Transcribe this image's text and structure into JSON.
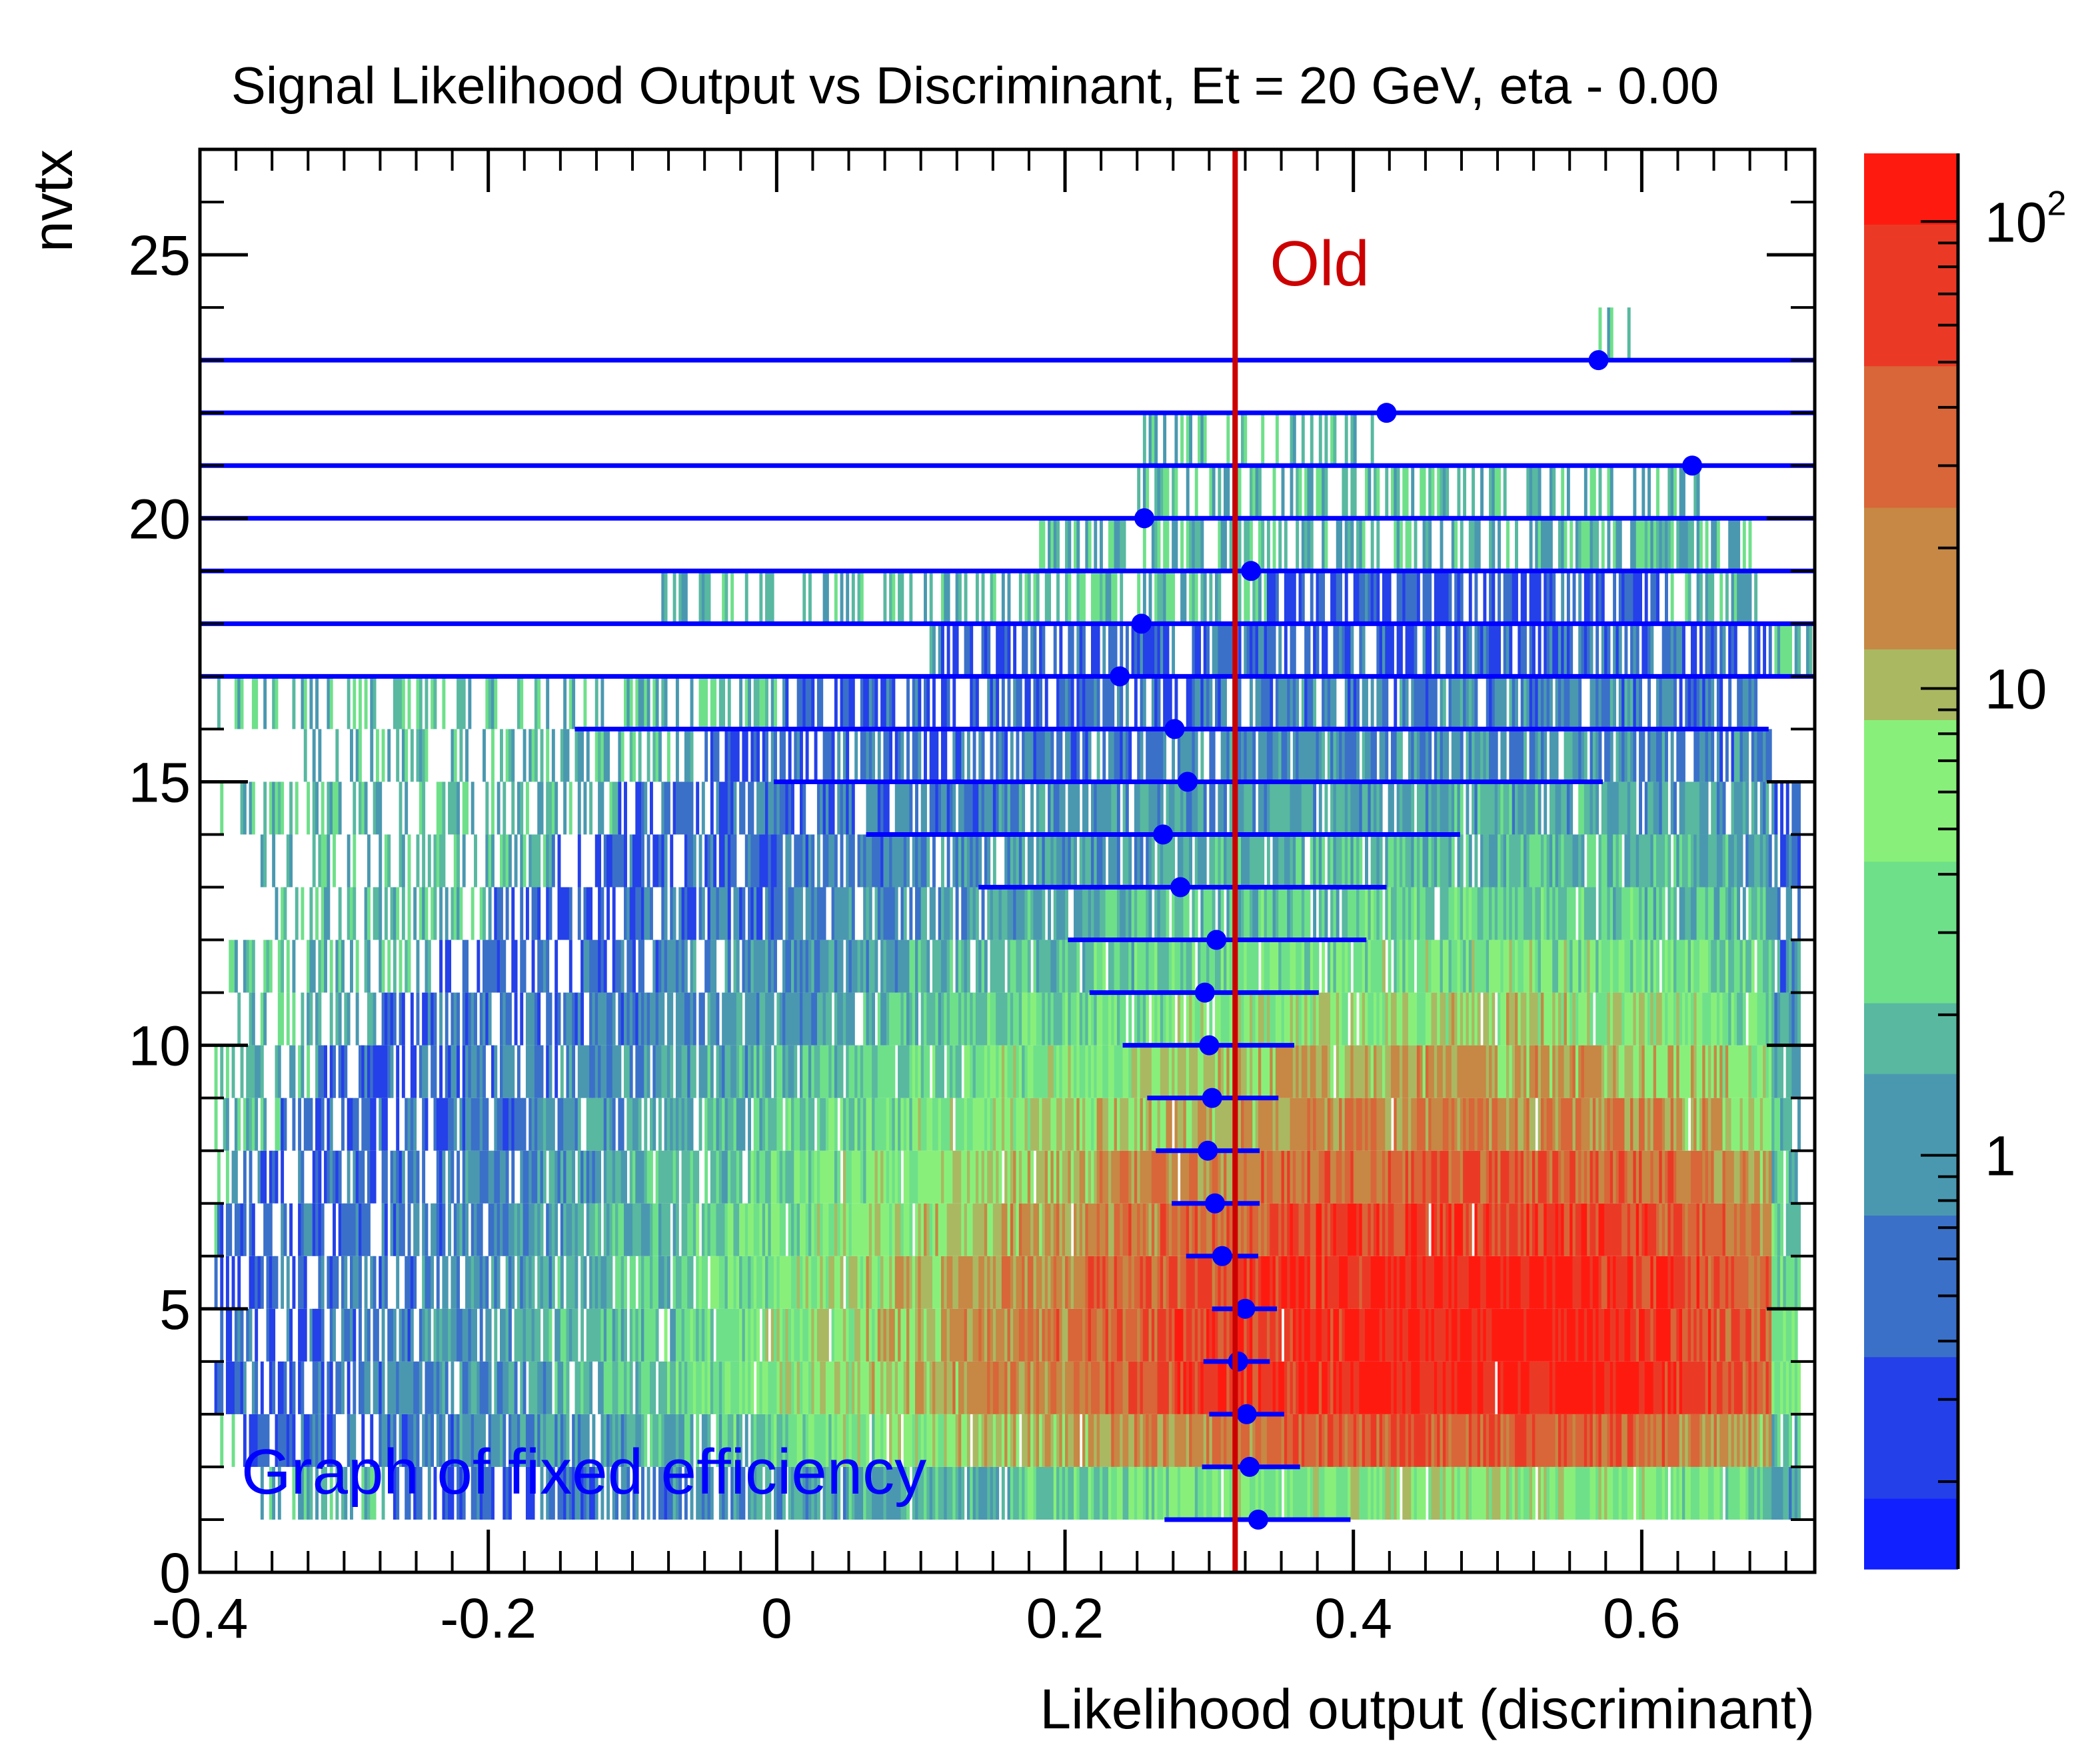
{
  "chart_data": {
    "type": "heatmap",
    "title": "Signal Likelihood Output vs Discriminant, Et = 20 GeV, eta - 0.00",
    "xlabel": "Likelihood output (discriminant)",
    "ylabel": "nvtx",
    "xlim": [
      -0.4,
      0.72
    ],
    "ylim": [
      0,
      27
    ],
    "x_ticks": [
      -0.4,
      -0.2,
      0,
      0.2,
      0.4,
      0.6
    ],
    "x_tick_labels": [
      "-0.4",
      "-0.2",
      "0",
      "0.2",
      "0.4",
      "0.6"
    ],
    "y_ticks": [
      0,
      5,
      10,
      15,
      20,
      25
    ],
    "y_tick_labels": [
      "0",
      "5",
      "10",
      "15",
      "20",
      "25"
    ],
    "z_scale": "log",
    "z_range": [
      0.13,
      140
    ],
    "z_tick_labels": [
      "1",
      "10",
      "10^2"
    ],
    "z_tick_values": [
      1,
      10,
      100
    ],
    "colors": {
      "graph": "#0000ff",
      "cut_line": "#cc0000",
      "palette": [
        "#1020ff",
        "#2440e8",
        "#3a70c8",
        "#4a98b0",
        "#58b8a0",
        "#6ee08a",
        "#88f07a",
        "#aab862",
        "#c68844",
        "#d86638",
        "#ea3a26",
        "#ff1a10"
      ]
    },
    "cut_line": {
      "x": 0.318,
      "label": "Old"
    },
    "annotation": "Graph of fixed efficiency",
    "heatmap_rows": [
      {
        "nvtx": 1,
        "xmin": -0.36,
        "xmax": 0.71,
        "peak": 0.52,
        "level": 0.55
      },
      {
        "nvtx": 2,
        "xmin": -0.39,
        "xmax": 0.71,
        "peak": 0.52,
        "level": 0.85
      },
      {
        "nvtx": 3,
        "xmin": -0.39,
        "xmax": 0.71,
        "peak": 0.52,
        "level": 1.0
      },
      {
        "nvtx": 4,
        "xmin": -0.39,
        "xmax": 0.71,
        "peak": 0.52,
        "level": 1.0
      },
      {
        "nvtx": 5,
        "xmin": -0.39,
        "xmax": 0.71,
        "peak": 0.52,
        "level": 0.98
      },
      {
        "nvtx": 6,
        "xmin": -0.39,
        "xmax": 0.71,
        "peak": 0.52,
        "level": 0.92
      },
      {
        "nvtx": 7,
        "xmin": -0.39,
        "xmax": 0.71,
        "peak": 0.52,
        "level": 0.85
      },
      {
        "nvtx": 8,
        "xmin": -0.39,
        "xmax": 0.71,
        "peak": 0.52,
        "level": 0.76
      },
      {
        "nvtx": 9,
        "xmin": -0.39,
        "xmax": 0.71,
        "peak": 0.52,
        "level": 0.68
      },
      {
        "nvtx": 10,
        "xmin": -0.38,
        "xmax": 0.71,
        "peak": 0.52,
        "level": 0.58
      },
      {
        "nvtx": 11,
        "xmin": -0.38,
        "xmax": 0.71,
        "peak": 0.52,
        "level": 0.5
      },
      {
        "nvtx": 12,
        "xmin": -0.36,
        "xmax": 0.71,
        "peak": 0.52,
        "level": 0.43
      },
      {
        "nvtx": 13,
        "xmin": -0.37,
        "xmax": 0.71,
        "peak": 0.52,
        "level": 0.37
      },
      {
        "nvtx": 14,
        "xmin": -0.39,
        "xmax": 0.71,
        "peak": 0.52,
        "level": 0.32
      },
      {
        "nvtx": 15,
        "xmin": -0.33,
        "xmax": 0.69,
        "peak": 0.52,
        "level": 0.27
      },
      {
        "nvtx": 16,
        "xmin": -0.39,
        "xmax": 0.68,
        "peak": 0.52,
        "level": 0.23
      },
      {
        "nvtx": 17,
        "xmin": 0.1,
        "xmax": 0.72,
        "peak": 0.52,
        "level": 0.18
      },
      {
        "nvtx": 18,
        "xmin": -0.08,
        "xmax": 0.68,
        "peak": 0.52,
        "level": 0.13
      },
      {
        "nvtx": 19,
        "xmin": 0.18,
        "xmax": 0.68,
        "peak": 0.52,
        "level": 0.11
      },
      {
        "nvtx": 20,
        "xmin": 0.25,
        "xmax": 0.65,
        "peak": 0.52,
        "level": 0.08
      },
      {
        "nvtx": 21,
        "xmin": 0.25,
        "xmax": 0.42,
        "peak": 0.52,
        "level": 0.05
      },
      {
        "nvtx": 22,
        "xmin": 0.42,
        "xmax": 0.42,
        "peak": 0.52,
        "level": 0.03
      },
      {
        "nvtx": 23,
        "xmin": 0.57,
        "xmax": 0.6,
        "peak": 0.52,
        "level": 0.03
      }
    ],
    "series": [
      {
        "name": "Graph of fixed efficiency",
        "points": [
          {
            "y": 1,
            "x": 0.334,
            "xerr_low": 0.065,
            "xerr_high": 0.064
          },
          {
            "y": 2,
            "x": 0.328,
            "xerr_low": 0.033,
            "xerr_high": 0.035
          },
          {
            "y": 3,
            "x": 0.326,
            "xerr_low": 0.026,
            "xerr_high": 0.026
          },
          {
            "y": 4,
            "x": 0.32,
            "xerr_low": 0.024,
            "xerr_high": 0.022
          },
          {
            "y": 5,
            "x": 0.325,
            "xerr_low": 0.023,
            "xerr_high": 0.022
          },
          {
            "y": 6,
            "x": 0.309,
            "xerr_low": 0.025,
            "xerr_high": 0.025
          },
          {
            "y": 7,
            "x": 0.304,
            "xerr_low": 0.03,
            "xerr_high": 0.031
          },
          {
            "y": 8,
            "x": 0.299,
            "xerr_low": 0.036,
            "xerr_high": 0.036
          },
          {
            "y": 9,
            "x": 0.302,
            "xerr_low": 0.045,
            "xerr_high": 0.046
          },
          {
            "y": 10,
            "x": 0.3,
            "xerr_low": 0.06,
            "xerr_high": 0.059
          },
          {
            "y": 11,
            "x": 0.297,
            "xerr_low": 0.08,
            "xerr_high": 0.079
          },
          {
            "y": 12,
            "x": 0.305,
            "xerr_low": 0.103,
            "xerr_high": 0.104
          },
          {
            "y": 13,
            "x": 0.28,
            "xerr_low": 0.14,
            "xerr_high": 0.143
          },
          {
            "y": 14,
            "x": 0.268,
            "xerr_low": 0.206,
            "xerr_high": 0.206
          },
          {
            "y": 15,
            "x": 0.285,
            "xerr_low": 0.287,
            "xerr_high": 0.288
          },
          {
            "y": 16,
            "x": 0.276,
            "xerr_low": 0.416,
            "xerr_high": 0.412
          },
          {
            "y": 17,
            "x": 0.238,
            "xerr_low": 0.638,
            "xerr_high": 0.482
          },
          {
            "y": 18,
            "x": 0.253,
            "xerr_low": 0.653,
            "xerr_high": 0.467
          },
          {
            "y": 19,
            "x": 0.329,
            "xerr_low": 0.729,
            "xerr_high": 0.391
          },
          {
            "y": 20,
            "x": 0.255,
            "xerr_low": 0.655,
            "xerr_high": 0.465
          },
          {
            "y": 21,
            "x": 0.635,
            "xerr_low": 1.035,
            "xerr_high": 0.085
          },
          {
            "y": 22,
            "x": 0.423,
            "xerr_low": 0.823,
            "xerr_high": 0.297
          },
          {
            "y": 23,
            "x": 0.57,
            "xerr_low": 0.97,
            "xerr_high": 0.15
          }
        ]
      }
    ]
  }
}
